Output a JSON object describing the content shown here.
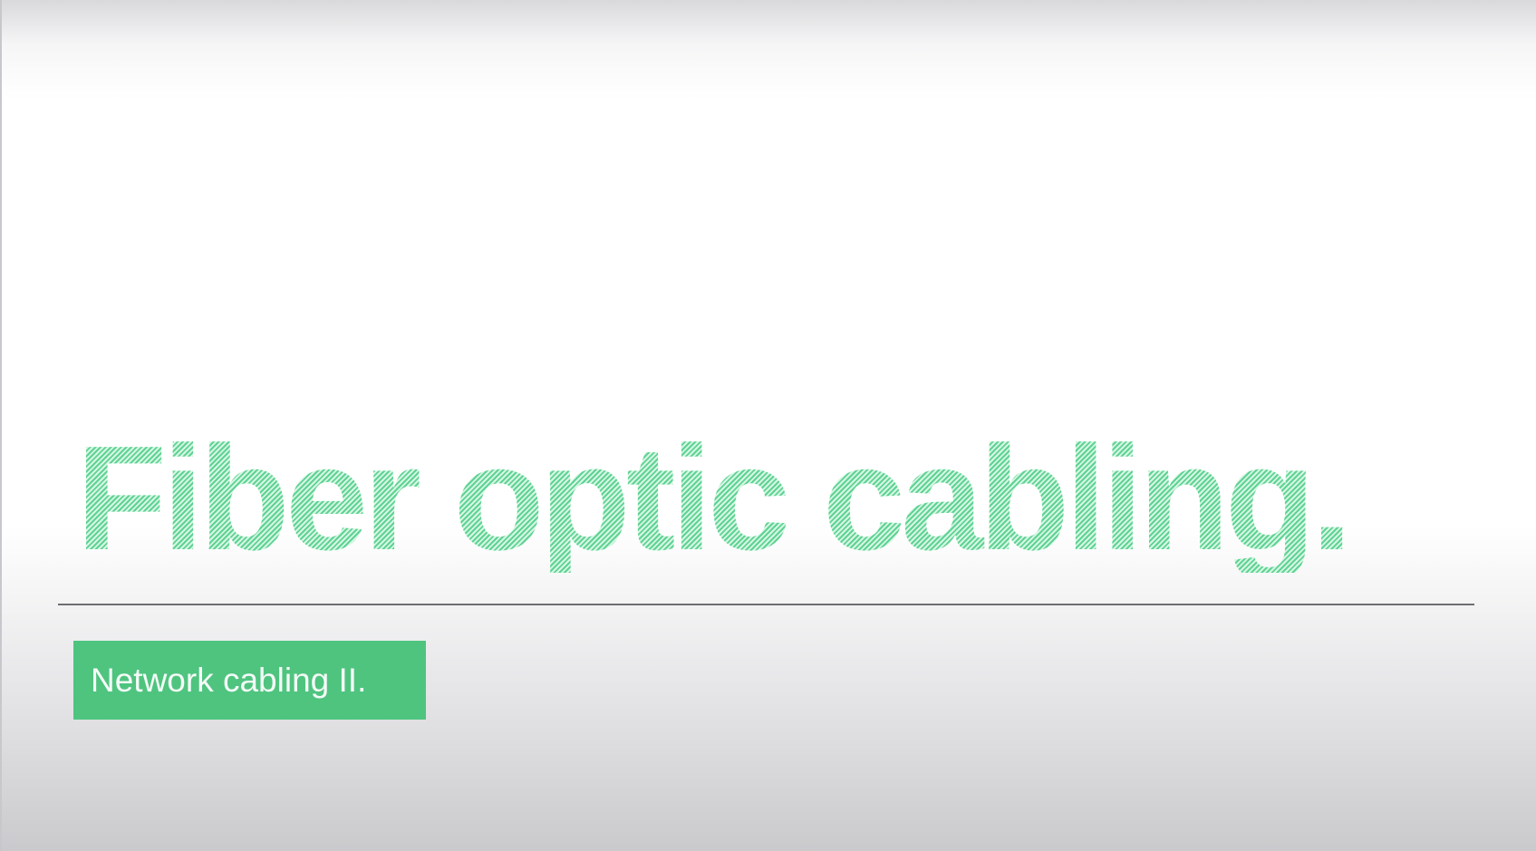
{
  "slide": {
    "title": "Fiber optic cabling.",
    "subtitle": "Network cabling II."
  },
  "colors": {
    "title_green": "#5fd393",
    "subtitle_box": "#4fc47f",
    "subtitle_text": "#f4fbf7",
    "divider": "#6e6e72"
  }
}
